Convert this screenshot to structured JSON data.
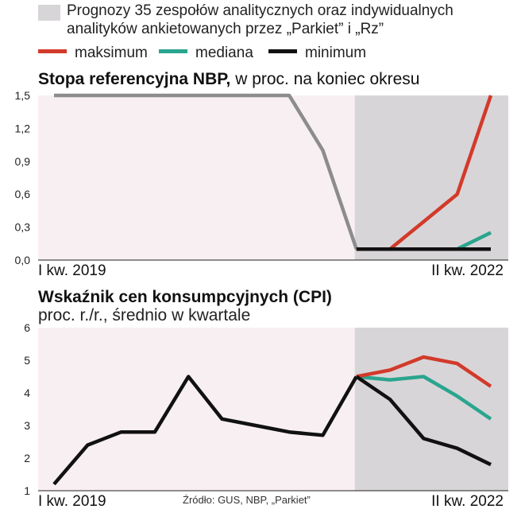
{
  "legend": {
    "forecast_band_text": "Prognozy 35 zespołów analitycznych oraz indywidualnych analityków ankietowanych przez „Parkiet” i „Rz”",
    "series": [
      {
        "name": "maksimum",
        "color": "#d23a2a"
      },
      {
        "name": "mediana",
        "color": "#2aa58e"
      },
      {
        "name": "minimum",
        "color": "#111111"
      }
    ],
    "band_color": "#d8d5d8"
  },
  "colors": {
    "history_rate": "#8c8c8c",
    "history_cpi": "#111111",
    "background": "#f8eff3",
    "forecast_band": "#d8d5d8"
  },
  "chart_data": [
    {
      "type": "line",
      "title_bold": "Stopa referencyjna NBP,",
      "title_rest": " w proc. na koniec okresu",
      "yticks": [
        "0,0",
        "0,3",
        "0,6",
        "0,9",
        "1,2",
        "1,5"
      ],
      "ylim": [
        0,
        1.5
      ],
      "x_start_label": "I kw.  2019",
      "x_end_label": "II kw. 2022",
      "n_periods": 14,
      "forecast_start_index": 9,
      "history": {
        "x": [
          0,
          1,
          2,
          3,
          4,
          5,
          6,
          7,
          8,
          9
        ],
        "values": [
          1.5,
          1.5,
          1.5,
          1.5,
          1.5,
          1.5,
          1.5,
          1.5,
          1.0,
          0.1
        ]
      },
      "forecasts": [
        {
          "name": "maksimum",
          "x": [
            9,
            10,
            11,
            12,
            13
          ],
          "values": [
            0.1,
            0.1,
            0.35,
            0.6,
            1.5
          ]
        },
        {
          "name": "mediana",
          "x": [
            9,
            10,
            11,
            12,
            13
          ],
          "values": [
            0.1,
            0.1,
            0.1,
            0.1,
            0.25
          ]
        },
        {
          "name": "minimum",
          "x": [
            9,
            10,
            11,
            12,
            13
          ],
          "values": [
            0.1,
            0.1,
            0.1,
            0.1,
            0.1
          ]
        }
      ]
    },
    {
      "type": "line",
      "title_bold": "Wskaźnik cen konsumpcyjnych (CPI)",
      "subtitle": "proc. r./r., średnio w kwartale",
      "yticks": [
        "1",
        "2",
        "3",
        "4",
        "5",
        "6"
      ],
      "ylim": [
        1,
        6
      ],
      "x_start_label": "I kw.  2019",
      "x_end_label": "II kw. 2022",
      "n_periods": 14,
      "forecast_start_index": 9,
      "history": {
        "x": [
          0,
          1,
          2,
          3,
          4,
          5,
          6,
          7,
          8,
          9
        ],
        "values": [
          1.2,
          2.4,
          2.8,
          2.8,
          4.5,
          3.2,
          3.0,
          2.8,
          2.7,
          4.5
        ]
      },
      "forecasts": [
        {
          "name": "maksimum",
          "x": [
            9,
            10,
            11,
            12,
            13
          ],
          "values": [
            4.5,
            4.7,
            5.1,
            4.9,
            4.2
          ]
        },
        {
          "name": "mediana",
          "x": [
            9,
            10,
            11,
            12,
            13
          ],
          "values": [
            4.5,
            4.4,
            4.5,
            3.9,
            3.2
          ]
        },
        {
          "name": "minimum",
          "x": [
            9,
            10,
            11,
            12,
            13
          ],
          "values": [
            4.5,
            3.8,
            2.6,
            2.3,
            1.8
          ]
        }
      ]
    }
  ],
  "source": "Źródło: GUS, NBP, „Parkiet”"
}
